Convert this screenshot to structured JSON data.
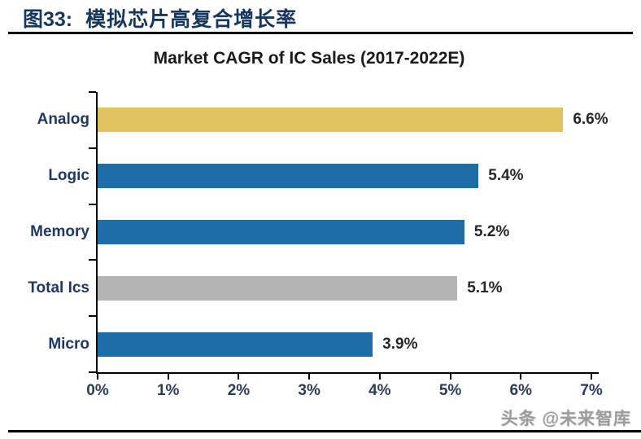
{
  "header": {
    "figure_label": "图33:",
    "figure_title": "模拟芯片高复合增长率"
  },
  "watermark": {
    "text": "头条 @未来智库"
  },
  "colors": {
    "bar_blue": "#1F6DA6",
    "bar_gold": "#E0C45F",
    "bar_gray": "#B4B4B4",
    "header_navy": "#16365C",
    "category_label_navy": "#1F3864",
    "axis_black": "#000000"
  },
  "chart_data": {
    "type": "bar",
    "orientation": "horizontal",
    "title": "Market CAGR of IC Sales (2017-2022E)",
    "categories": [
      "Analog",
      "Logic",
      "Memory",
      "Total Ics",
      "Micro"
    ],
    "values": [
      6.6,
      5.4,
      5.2,
      5.1,
      3.9
    ],
    "value_labels": [
      "6.6%",
      "5.4%",
      "5.2%",
      "5.1%",
      "3.9%"
    ],
    "bar_colors": [
      "#E0C45F",
      "#1F6DA6",
      "#1F6DA6",
      "#B4B4B4",
      "#1F6DA6"
    ],
    "x_tick_labels": [
      "0%",
      "1%",
      "2%",
      "3%",
      "4%",
      "5%",
      "6%",
      "7%"
    ],
    "xlim": [
      0,
      7
    ],
    "grid": false,
    "legend": "none",
    "value_labels_position": "right-of-bar"
  }
}
